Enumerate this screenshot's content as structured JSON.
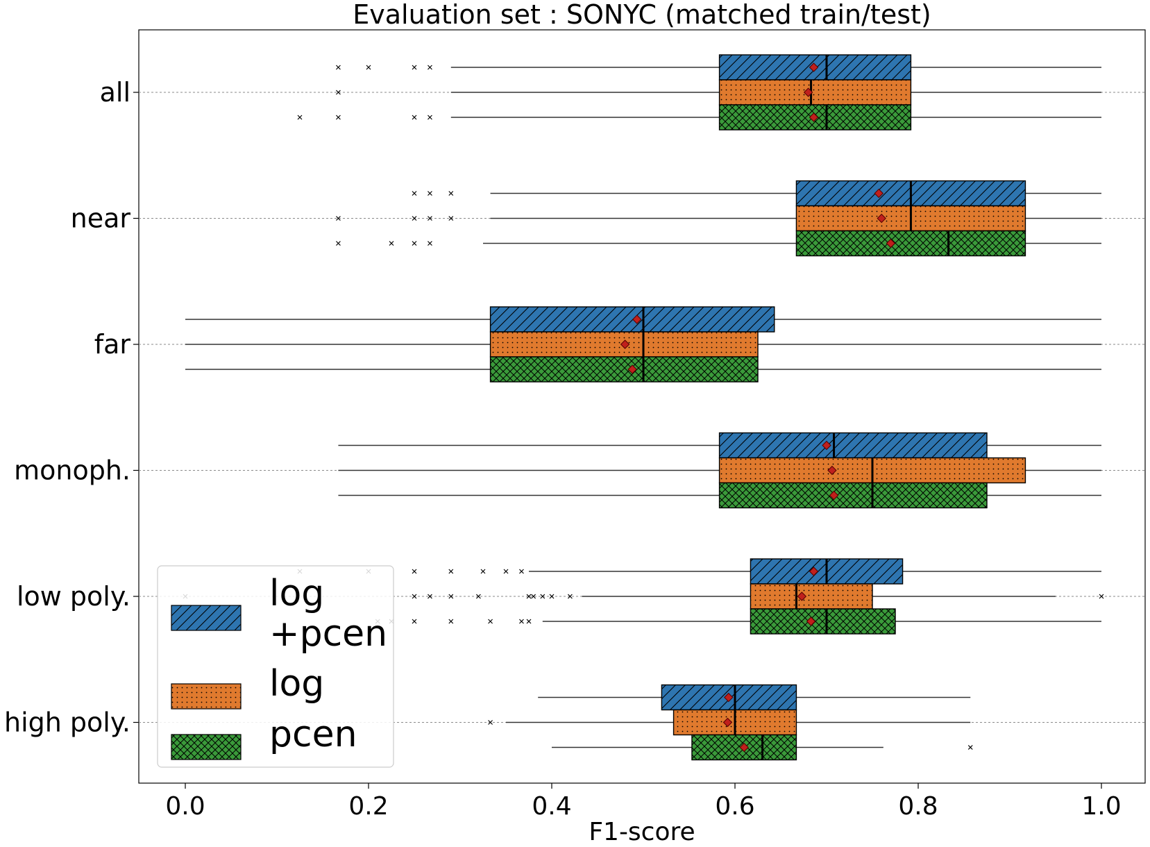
{
  "chart_data": {
    "type": "box",
    "orientation": "horizontal",
    "title": "Evaluation set : SONYC (matched train/test)",
    "xlabel": "F1-score",
    "ylabel": "",
    "xlim": [
      -0.05,
      1.05
    ],
    "x_ticks": [
      "0.0",
      "0.2",
      "0.4",
      "0.6",
      "0.8",
      "1.0"
    ],
    "x_tick_values": [
      0.0,
      0.2,
      0.4,
      0.6,
      0.8,
      1.0
    ],
    "categories": [
      "all",
      "near",
      "far",
      "monoph.",
      "low poly.",
      "high poly."
    ],
    "grid": "horizontal dashed at categories",
    "legend": {
      "placement": "lower-left",
      "entries": [
        {
          "label_line1": " log",
          "label_line2": "+pcen",
          "series": "log+pcen"
        },
        {
          "label_line1": "log",
          "label_line2": "",
          "series": "log"
        },
        {
          "label_line1": "pcen",
          "label_line2": "",
          "series": "pcen"
        }
      ]
    },
    "series": [
      {
        "name": "log+pcen",
        "color": "#2e75b0",
        "hatch": "diagonal",
        "boxes": [
          {
            "whislo": 0.29,
            "q1": 0.583,
            "med": 0.7,
            "q3": 0.792,
            "whishi": 1.0,
            "mean": 0.686,
            "fliers": [
              0.167,
              0.2,
              0.25,
              0.267
            ]
          },
          {
            "whislo": 0.333,
            "q1": 0.667,
            "med": 0.792,
            "q3": 0.917,
            "whishi": 1.0,
            "mean": 0.757,
            "fliers": [
              0.25,
              0.267,
              0.29
            ]
          },
          {
            "whislo": 0.0,
            "q1": 0.333,
            "med": 0.5,
            "q3": 0.643,
            "whishi": 1.0,
            "mean": 0.493,
            "fliers": []
          },
          {
            "whislo": 0.167,
            "q1": 0.583,
            "med": 0.708,
            "q3": 0.875,
            "whishi": 1.0,
            "mean": 0.7,
            "fliers": []
          },
          {
            "whislo": 0.375,
            "q1": 0.617,
            "med": 0.7,
            "q3": 0.783,
            "whishi": 1.0,
            "mean": 0.686,
            "fliers": [
              0.125,
              0.2,
              0.25,
              0.29,
              0.325,
              0.35,
              0.367
            ]
          },
          {
            "whislo": 0.385,
            "q1": 0.52,
            "med": 0.6,
            "q3": 0.667,
            "whishi": 0.857,
            "mean": 0.593,
            "fliers": []
          }
        ]
      },
      {
        "name": "log",
        "color": "#e07a2e",
        "hatch": "dots",
        "boxes": [
          {
            "whislo": 0.29,
            "q1": 0.583,
            "med": 0.683,
            "q3": 0.792,
            "whishi": 1.0,
            "mean": 0.68,
            "fliers": [
              0.167
            ]
          },
          {
            "whislo": 0.333,
            "q1": 0.667,
            "med": 0.792,
            "q3": 0.917,
            "whishi": 1.0,
            "mean": 0.76,
            "fliers": [
              0.167,
              0.25,
              0.267,
              0.29
            ]
          },
          {
            "whislo": 0.0,
            "q1": 0.333,
            "med": 0.5,
            "q3": 0.625,
            "whishi": 1.0,
            "mean": 0.48,
            "fliers": []
          },
          {
            "whislo": 0.167,
            "q1": 0.583,
            "med": 0.75,
            "q3": 0.917,
            "whishi": 1.0,
            "mean": 0.706,
            "fliers": []
          },
          {
            "whislo": 0.433,
            "q1": 0.617,
            "med": 0.667,
            "q3": 0.75,
            "whishi": 0.95,
            "mean": 0.673,
            "fliers": [
              0.0,
              0.25,
              0.267,
              0.29,
              0.32,
              0.375,
              0.38,
              0.39,
              0.4,
              0.42,
              1.0
            ]
          },
          {
            "whislo": 0.35,
            "q1": 0.533,
            "med": 0.6,
            "q3": 0.667,
            "whishi": 0.857,
            "mean": 0.592,
            "fliers": [
              0.333
            ]
          }
        ]
      },
      {
        "name": "pcen",
        "color": "#3a9a3a",
        "hatch": "crosshatch",
        "boxes": [
          {
            "whislo": 0.29,
            "q1": 0.583,
            "med": 0.7,
            "q3": 0.792,
            "whishi": 1.0,
            "mean": 0.686,
            "fliers": [
              0.125,
              0.167,
              0.25,
              0.267
            ]
          },
          {
            "whislo": 0.325,
            "q1": 0.667,
            "med": 0.833,
            "q3": 0.917,
            "whishi": 1.0,
            "mean": 0.77,
            "fliers": [
              0.167,
              0.225,
              0.25,
              0.267
            ]
          },
          {
            "whislo": 0.0,
            "q1": 0.333,
            "med": 0.5,
            "q3": 0.625,
            "whishi": 1.0,
            "mean": 0.488,
            "fliers": []
          },
          {
            "whislo": 0.167,
            "q1": 0.583,
            "med": 0.75,
            "q3": 0.875,
            "whishi": 1.0,
            "mean": 0.708,
            "fliers": []
          },
          {
            "whislo": 0.39,
            "q1": 0.617,
            "med": 0.7,
            "q3": 0.775,
            "whishi": 1.0,
            "mean": 0.683,
            "fliers": [
              0.21,
              0.225,
              0.25,
              0.29,
              0.333,
              0.367,
              0.375
            ]
          },
          {
            "whislo": 0.4,
            "q1": 0.553,
            "med": 0.63,
            "q3": 0.667,
            "whishi": 0.762,
            "mean": 0.61,
            "fliers": [
              0.857
            ]
          }
        ]
      }
    ]
  }
}
